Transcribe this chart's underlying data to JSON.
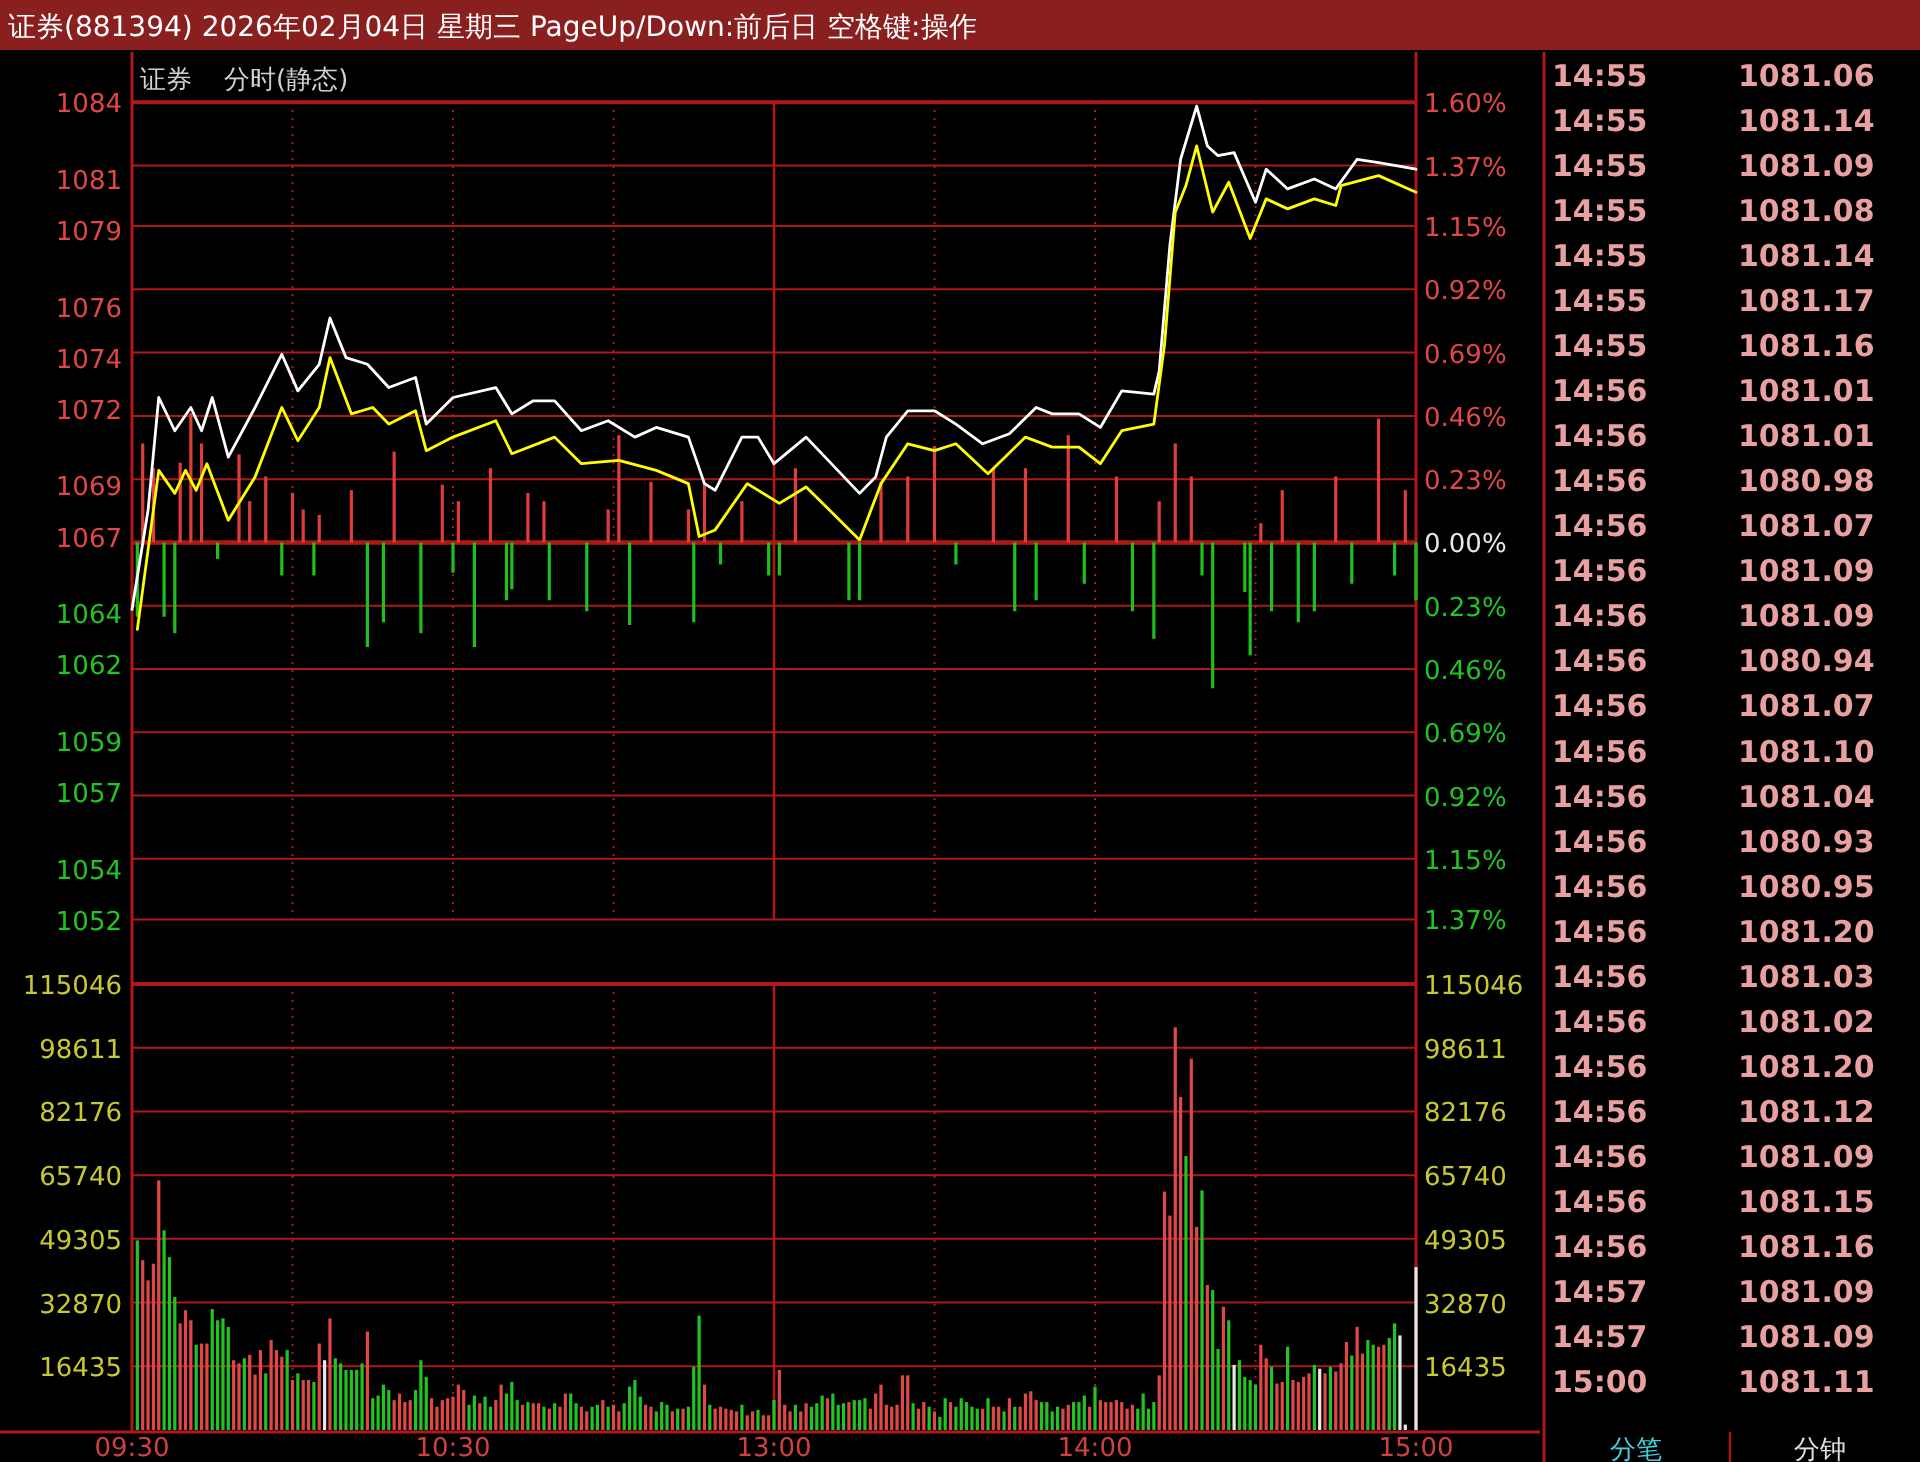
{
  "chart_data": [
    {
      "type": "line",
      "title": "证券(881394) 2026年02月04日 星期三 PageUp/Down:前后日 空格键:操作",
      "subtitle": "证券",
      "annotations": [
        "分时(静态)"
      ],
      "categories": [
        null,
        null,
        null,
        null,
        null,
        null,
        null,
        null,
        null,
        null,
        null,
        null,
        null,
        null,
        null,
        null,
        null,
        null,
        null,
        null,
        null,
        null,
        null,
        null,
        null,
        null,
        null,
        null,
        null,
        null,
        null,
        null,
        null,
        null,
        null,
        null,
        null,
        null,
        null,
        null,
        null,
        null,
        null,
        null,
        null,
        null,
        null,
        null,
        null,
        null,
        null,
        null,
        null,
        null,
        null,
        null,
        null,
        null,
        null,
        null,
        null,
        null,
        null,
        null,
        null,
        null,
        null,
        null,
        null,
        null,
        null,
        null,
        null,
        null,
        null,
        null,
        null,
        null,
        null,
        null,
        null,
        null,
        null,
        null,
        null,
        null,
        null,
        null,
        null,
        null,
        null,
        null,
        null,
        null,
        null,
        null,
        null,
        null,
        null,
        null,
        null,
        null,
        null,
        null,
        null,
        null,
        null,
        null,
        null,
        null,
        null,
        null,
        null,
        null,
        null,
        null,
        null,
        null,
        null,
        null,
        null,
        null,
        null,
        null,
        null,
        null,
        null,
        null,
        null,
        null,
        null,
        null,
        null,
        null,
        null,
        null,
        null,
        null,
        null,
        null,
        null,
        null,
        null,
        null,
        null,
        null,
        null,
        null,
        null,
        null,
        null,
        null,
        null,
        null,
        null,
        null,
        null,
        null,
        null,
        null,
        null,
        null,
        null,
        null,
        null,
        null,
        null,
        null,
        null,
        null,
        null,
        null,
        null,
        null,
        null,
        null,
        null,
        null,
        null,
        null,
        null,
        null,
        null,
        null,
        null,
        null,
        null,
        null,
        null,
        null,
        null,
        null,
        null,
        null,
        null,
        null,
        null,
        null,
        null,
        null,
        null,
        null,
        null,
        null,
        null,
        null,
        null,
        null,
        null,
        null,
        null,
        null,
        null,
        null,
        null,
        null,
        null,
        null,
        null,
        null,
        null,
        null,
        null,
        null,
        null,
        null,
        null,
        null,
        null,
        null,
        null,
        null,
        null,
        null,
        null,
        null,
        null,
        null,
        null,
        null,
        null
      ],
      "ylim": [
        1052,
        1084
      ],
      "yticks": [
        1052,
        1054,
        1057,
        1059,
        1062,
        1064,
        1067,
        1069,
        1072,
        1074,
        1076,
        1079,
        1081,
        1084
      ],
      "y2lim": [
        -1.3722,
        1.6009
      ],
      "y2ticks": [
        {
          "value": -1.37,
          "label": "1.37%"
        },
        {
          "value": -1.15,
          "label": "1.15%"
        },
        {
          "value": -0.92,
          "label": "0.92%"
        },
        {
          "value": -0.69,
          "label": "0.69%"
        },
        {
          "value": -0.46,
          "label": "0.46%"
        },
        {
          "value": -0.23,
          "label": "0.23%"
        },
        {
          "value": 0,
          "label": "0.00%"
        },
        {
          "value": 0.23,
          "label": "0.23%"
        },
        {
          "value": 0.46,
          "label": "0.46%"
        },
        {
          "value": 0.69,
          "label": "0.69%"
        },
        {
          "value": 0.92,
          "label": "0.92%"
        },
        {
          "value": 1.15,
          "label": "1.15%"
        },
        {
          "value": 1.37,
          "label": "1.37%"
        },
        {
          "value": 1.6,
          "label": "1.60%"
        }
      ],
      "grid": "y",
      "tick_labels": "y",
      "ref_lines": [
        {
          "axis": "y2",
          "value": 0
        }
      ],
      "series": [
        {
          "color": "#ffffff",
          "values": [
            1064.15,
            null,
            null,
            1068.03,
            null,
            1072.44,
            null,
            null,
            1071.14,
            null,
            null,
            1072.05,
            null,
            1071.14,
            null,
            1072.44,
            null,
            null,
            1070.11,
            null,
            null,
            null,
            null,
            1072.05,
            null,
            null,
            null,
            null,
            1074.13,
            null,
            null,
            1072.7,
            null,
            null,
            null,
            1073.74,
            null,
            1075.55,
            null,
            null,
            1074.0,
            null,
            null,
            null,
            1073.74,
            null,
            null,
            null,
            1072.83,
            null,
            null,
            null,
            null,
            1073.22,
            null,
            1071.4,
            null,
            null,
            null,
            null,
            1072.44,
            null,
            null,
            null,
            null,
            null,
            null,
            null,
            1072.83,
            null,
            null,
            1071.8,
            null,
            null,
            null,
            1072.31,
            null,
            null,
            null,
            1072.31,
            null,
            null,
            null,
            null,
            1071.14,
            null,
            null,
            null,
            null,
            1071.53,
            null,
            null,
            null,
            null,
            1070.89,
            null,
            null,
            null,
            1071.27,
            null,
            null,
            null,
            null,
            null,
            1070.89,
            null,
            null,
            1069.07,
            null,
            1068.81,
            null,
            null,
            null,
            null,
            1070.89,
            null,
            null,
            1070.89,
            null,
            null,
            1069.85,
            null,
            null,
            null,
            null,
            null,
            1070.89,
            null,
            null,
            null,
            null,
            null,
            null,
            null,
            null,
            null,
            1068.69,
            null,
            null,
            1069.33,
            null,
            1070.89,
            null,
            null,
            null,
            1071.92,
            null,
            null,
            null,
            null,
            1071.92,
            null,
            null,
            null,
            1071.4,
            null,
            null,
            null,
            null,
            1070.63,
            null,
            null,
            null,
            null,
            1071.02,
            null,
            null,
            null,
            null,
            1072.05,
            null,
            null,
            1071.8,
            null,
            null,
            null,
            null,
            1071.8,
            null,
            null,
            null,
            1071.27,
            null,
            null,
            null,
            1072.7,
            null,
            null,
            null,
            null,
            null,
            1072.57,
            1073.47,
            null,
            1078.4,
            null,
            1081.76,
            null,
            null,
            1083.84,
            null,
            1082.28,
            null,
            1081.9,
            null,
            null,
            1082.02,
            null,
            null,
            null,
            1080.08,
            null,
            1081.37,
            null,
            null,
            null,
            1080.6,
            null,
            null,
            null,
            null,
            1080.99,
            null,
            null,
            null,
            1080.6,
            null,
            null,
            null,
            1081.76,
            null,
            null,
            null,
            1081.63,
            null,
            null,
            null,
            null,
            null,
            null,
            1081.37
          ]
        },
        {
          "color": "#ffff00",
          "values": [
            null,
            1063.37,
            null,
            null,
            null,
            1069.59,
            null,
            null,
            1068.69,
            null,
            1069.59,
            null,
            1068.81,
            null,
            1069.85,
            null,
            null,
            null,
            1067.64,
            null,
            null,
            null,
            null,
            1069.33,
            null,
            null,
            null,
            null,
            1072.05,
            null,
            null,
            1070.75,
            null,
            null,
            null,
            1072.05,
            null,
            1074.0,
            null,
            null,
            null,
            1071.8,
            null,
            null,
            null,
            1072.05,
            null,
            null,
            1071.4,
            null,
            null,
            null,
            null,
            1071.92,
            null,
            1070.36,
            null,
            null,
            null,
            null,
            1070.89,
            null,
            null,
            null,
            null,
            null,
            null,
            null,
            1071.53,
            null,
            null,
            1070.24,
            null,
            null,
            null,
            null,
            null,
            null,
            null,
            1070.89,
            null,
            null,
            null,
            null,
            1069.85,
            null,
            null,
            null,
            null,
            null,
            null,
            1069.98,
            null,
            null,
            null,
            null,
            null,
            null,
            1069.59,
            null,
            null,
            null,
            null,
            null,
            1069.07,
            null,
            1067.0,
            null,
            null,
            1067.26,
            null,
            null,
            null,
            null,
            null,
            1069.07,
            null,
            null,
            null,
            null,
            null,
            1068.3,
            null,
            null,
            null,
            null,
            1068.94,
            null,
            null,
            null,
            null,
            null,
            null,
            null,
            null,
            null,
            1066.87,
            null,
            null,
            null,
            1069.07,
            null,
            null,
            null,
            null,
            1070.63,
            null,
            null,
            null,
            null,
            1070.36,
            null,
            null,
            null,
            1070.63,
            null,
            null,
            null,
            null,
            null,
            1069.46,
            null,
            null,
            null,
            null,
            null,
            null,
            1070.89,
            null,
            null,
            null,
            null,
            1070.5,
            null,
            null,
            null,
            null,
            1070.5,
            null,
            null,
            null,
            1069.85,
            null,
            null,
            null,
            1071.14,
            null,
            null,
            null,
            null,
            null,
            1071.4,
            null,
            1074.51,
            null,
            1079.69,
            null,
            1080.73,
            null,
            1082.28,
            null,
            null,
            1079.69,
            null,
            null,
            1080.86,
            null,
            null,
            null,
            1078.66,
            null,
            null,
            1080.21,
            null,
            null,
            null,
            1079.82,
            null,
            null,
            null,
            null,
            1080.21,
            null,
            null,
            null,
            1079.95,
            1080.73,
            null,
            null,
            null,
            null,
            null,
            null,
            1081.12,
            null,
            null,
            null,
            null,
            null,
            null,
            1080.47
          ]
        },
        {
          "type": "bar",
          "axis": "y2",
          "color": "#e03c3c",
          "values": [
            null,
            null,
            0.36,
            null,
            0.27,
            null,
            null,
            null,
            null,
            0.29,
            null,
            0.47,
            null,
            0.36,
            null,
            null,
            null,
            null,
            null,
            null,
            0.32,
            null,
            0.15,
            null,
            null,
            0.24,
            null,
            null,
            null,
            null,
            0.18,
            null,
            0.12,
            null,
            null,
            0.1,
            null,
            null,
            null,
            null,
            null,
            0.19,
            null,
            null,
            null,
            null,
            null,
            null,
            null,
            0.33,
            null,
            null,
            null,
            null,
            null,
            null,
            null,
            null,
            0.21,
            null,
            null,
            0.15,
            null,
            null,
            null,
            null,
            null,
            0.27,
            null,
            null,
            null,
            null,
            null,
            null,
            0.18,
            null,
            null,
            0.15,
            null,
            null,
            null,
            null,
            null,
            null,
            null,
            null,
            null,
            null,
            null,
            0.12,
            null,
            0.39,
            null,
            null,
            null,
            null,
            null,
            0.22,
            null,
            null,
            null,
            null,
            null,
            null,
            0.12,
            null,
            null,
            0.22,
            null,
            null,
            null,
            null,
            null,
            null,
            0.15,
            null,
            null,
            null,
            null,
            null,
            null,
            null,
            null,
            null,
            0.27,
            null,
            null,
            null,
            null,
            null,
            null,
            null,
            null,
            null,
            null,
            null,
            null,
            null,
            null,
            null,
            0.22,
            null,
            null,
            null,
            null,
            0.24,
            null,
            null,
            null,
            null,
            0.35,
            null,
            null,
            null,
            null,
            null,
            null,
            null,
            null,
            null,
            null,
            0.27,
            null,
            null,
            null,
            null,
            null,
            0.27,
            null,
            null,
            null,
            null,
            null,
            null,
            null,
            0.39,
            null,
            null,
            null,
            null,
            null,
            null,
            null,
            null,
            0.24,
            null,
            null,
            null,
            null,
            null,
            null,
            null,
            0.15,
            null,
            null,
            0.36,
            null,
            null,
            0.24,
            null,
            null,
            null,
            null,
            null,
            null,
            null,
            null,
            null,
            null,
            null,
            null,
            0.07,
            null,
            null,
            null,
            0.19,
            null,
            null,
            null,
            null,
            null,
            null,
            null,
            null,
            null,
            0.24,
            null,
            null,
            null,
            null,
            null,
            null,
            null,
            0.45,
            null,
            null,
            null,
            null,
            0.19,
            null,
            null
          ]
        },
        {
          "type": "bar",
          "axis": "y2",
          "color": "#1fbf1f",
          "values": [
            null,
            -0.27,
            null,
            null,
            null,
            null,
            -0.27,
            null,
            -0.33,
            null,
            null,
            null,
            null,
            null,
            null,
            null,
            -0.06,
            null,
            null,
            null,
            null,
            null,
            null,
            null,
            null,
            null,
            null,
            null,
            -0.12,
            null,
            null,
            null,
            null,
            null,
            -0.12,
            null,
            null,
            null,
            null,
            null,
            null,
            null,
            null,
            null,
            -0.38,
            null,
            null,
            -0.29,
            null,
            null,
            null,
            null,
            null,
            null,
            -0.33,
            null,
            null,
            null,
            null,
            null,
            -0.11,
            null,
            null,
            null,
            -0.38,
            null,
            null,
            null,
            null,
            null,
            -0.21,
            -0.17,
            null,
            null,
            null,
            null,
            null,
            null,
            -0.21,
            null,
            null,
            null,
            null,
            null,
            null,
            -0.25,
            null,
            null,
            null,
            null,
            null,
            null,
            null,
            -0.3,
            null,
            null,
            null,
            null,
            null,
            null,
            null,
            null,
            null,
            null,
            null,
            -0.29,
            null,
            null,
            null,
            null,
            -0.08,
            null,
            null,
            null,
            null,
            null,
            null,
            null,
            null,
            -0.12,
            null,
            -0.12,
            null,
            null,
            null,
            null,
            null,
            null,
            null,
            null,
            null,
            null,
            null,
            null,
            -0.21,
            null,
            -0.21,
            null,
            null,
            null,
            null,
            null,
            null,
            null,
            null,
            null,
            null,
            null,
            null,
            null,
            null,
            null,
            null,
            null,
            -0.08,
            null,
            null,
            null,
            null,
            null,
            null,
            null,
            null,
            null,
            null,
            -0.25,
            null,
            null,
            null,
            -0.21,
            null,
            null,
            null,
            null,
            null,
            null,
            null,
            null,
            -0.15,
            null,
            null,
            null,
            null,
            null,
            null,
            null,
            null,
            -0.25,
            null,
            null,
            null,
            -0.35,
            null,
            null,
            null,
            null,
            null,
            null,
            null,
            null,
            -0.12,
            null,
            -0.53,
            null,
            null,
            null,
            null,
            null,
            -0.18,
            -0.41,
            null,
            null,
            null,
            -0.25,
            null,
            null,
            null,
            null,
            -0.29,
            null,
            null,
            -0.25,
            null,
            null,
            null,
            null,
            null,
            null,
            -0.15,
            null,
            null,
            null,
            null,
            null,
            null,
            null,
            -0.12,
            null,
            null,
            null,
            -0.21
          ]
        }
      ]
    },
    {
      "type": "bar",
      "categories": [
        "09:30",
        null,
        null,
        null,
        null,
        null,
        null,
        null,
        null,
        null,
        null,
        null,
        null,
        null,
        null,
        null,
        null,
        null,
        null,
        null,
        null,
        null,
        null,
        null,
        null,
        null,
        null,
        null,
        null,
        null,
        null,
        null,
        null,
        null,
        null,
        null,
        null,
        null,
        null,
        null,
        null,
        null,
        null,
        null,
        null,
        null,
        null,
        null,
        null,
        null,
        null,
        null,
        null,
        null,
        null,
        null,
        null,
        null,
        null,
        null,
        "10:30",
        null,
        null,
        null,
        null,
        null,
        null,
        null,
        null,
        null,
        null,
        null,
        null,
        null,
        null,
        null,
        null,
        null,
        null,
        null,
        null,
        null,
        null,
        null,
        null,
        null,
        null,
        null,
        null,
        null,
        null,
        null,
        null,
        null,
        null,
        null,
        null,
        null,
        null,
        null,
        null,
        null,
        null,
        null,
        null,
        null,
        null,
        null,
        null,
        null,
        null,
        null,
        null,
        null,
        null,
        null,
        null,
        null,
        null,
        null,
        "13:00",
        null,
        null,
        null,
        null,
        null,
        null,
        null,
        null,
        null,
        null,
        null,
        null,
        null,
        null,
        null,
        null,
        null,
        null,
        null,
        null,
        null,
        null,
        null,
        null,
        null,
        null,
        null,
        null,
        null,
        null,
        null,
        null,
        null,
        null,
        null,
        null,
        null,
        null,
        null,
        null,
        null,
        null,
        null,
        null,
        null,
        null,
        null,
        null,
        null,
        null,
        null,
        null,
        null,
        null,
        null,
        null,
        null,
        null,
        null,
        "14:00",
        null,
        null,
        null,
        null,
        null,
        null,
        null,
        null,
        null,
        null,
        null,
        null,
        null,
        null,
        null,
        null,
        null,
        null,
        null,
        null,
        null,
        null,
        null,
        null,
        null,
        null,
        null,
        null,
        null,
        null,
        null,
        null,
        null,
        null,
        null,
        null,
        null,
        null,
        null,
        null,
        null,
        null,
        null,
        null,
        null,
        null,
        null,
        null,
        null,
        null,
        null,
        null,
        null,
        null,
        null,
        null,
        null,
        null,
        null,
        "15:00"
      ],
      "ylim": [
        0,
        115046
      ],
      "yticks": [
        16435,
        32870,
        49305,
        65740,
        82176,
        98611,
        115046
      ],
      "y2lim": [
        0,
        115046
      ],
      "y2ticks": [
        16435,
        32870,
        49305,
        65740,
        82176,
        98611,
        115046
      ],
      "grid": "y",
      "series": [
        {
          "values": [
            null,
            48900,
            43800,
            38600,
            42900,
            64400,
            51500,
            44600,
            34300,
            27500,
            30900,
            28300,
            22000,
            22300,
            22300,
            31200,
            28300,
            28800,
            26600,
            18000,
            17200,
            18500,
            19400,
            14300,
            20600,
            14600,
            23200,
            20600,
            18900,
            20600,
            12900,
            14600,
            12900,
            12900,
            12400,
            22300,
            18000,
            28800,
            18500,
            17200,
            15500,
            15500,
            15500,
            17200,
            25400,
            8200,
            8900,
            11700,
            10300,
            7700,
            9400,
            7200,
            7700,
            10300,
            18000,
            13700,
            8200,
            6000,
            7700,
            8200,
            8600,
            11700,
            10300,
            6500,
            8900,
            6900,
            8600,
            6000,
            7700,
            11700,
            9400,
            12400,
            7700,
            6500,
            7200,
            6900,
            6900,
            6000,
            5500,
            6900,
            6000,
            9400,
            9400,
            6900,
            6000,
            4800,
            6000,
            6500,
            7700,
            6000,
            6500,
            4800,
            6900,
            11200,
            12900,
            8600,
            6500,
            6000,
            4800,
            7200,
            6500,
            4800,
            5500,
            5500,
            6000,
            16300,
            29500,
            11700,
            6500,
            5500,
            6000,
            5500,
            5200,
            4800,
            6500,
            3800,
            4800,
            5200,
            3800,
            3800,
            7700,
            15500,
            6500,
            4800,
            6500,
            4800,
            6900,
            6000,
            6900,
            8900,
            8200,
            9400,
            6500,
            6900,
            7200,
            7700,
            7700,
            8200,
            5500,
            9400,
            11700,
            6500,
            6000,
            6500,
            14100,
            14100,
            6900,
            5500,
            7200,
            6000,
            4800,
            3400,
            8200,
            7200,
            6000,
            8200,
            7200,
            6000,
            5500,
            5500,
            8200,
            6000,
            6000,
            4800,
            8200,
            6000,
            6000,
            9400,
            10000,
            7700,
            7200,
            7200,
            4800,
            6000,
            5500,
            6500,
            7200,
            7200,
            8900,
            6000,
            11200,
            7700,
            7200,
            7200,
            7700,
            7200,
            5500,
            6500,
            5500,
            9400,
            5500,
            7200,
            14100,
            61500,
            55300,
            103900,
            85900,
            70700,
            95800,
            52400,
            61800,
            37400,
            36100,
            20900,
            31800,
            28300,
            16800,
            18000,
            13700,
            12900,
            11700,
            22000,
            18500,
            16300,
            12000,
            12400,
            21500,
            12900,
            12400,
            13700,
            14600,
            16800,
            15800,
            14600,
            16300,
            15100,
            17200,
            22700,
            19200,
            26600,
            19700,
            23200,
            22000,
            21500,
            22000,
            23700,
            27500,
            24400,
            1400,
            null,
            42000
          ],
          "colors": [
            null,
            "#22c422",
            "#e04848",
            "#e04848",
            "#e04848",
            "#e04848",
            "#22c422",
            "#22c422",
            "#22c422",
            "#e04848",
            "#e04848",
            "#e04848",
            "#22c422",
            "#e04848",
            "#e04848",
            "#22c422",
            "#22c422",
            "#22c422",
            "#22c422",
            "#e04848",
            "#e04848",
            "#22c422",
            "#e04848",
            "#e04848",
            "#e04848",
            "#22c422",
            "#e04848",
            "#e04848",
            "#e04848",
            "#22c422",
            "#e04848",
            "#22c422",
            "#e04848",
            "#e04848",
            "#22c422",
            "#e04848",
            "#e8e8e8",
            "#e04848",
            "#22c422",
            "#22c422",
            "#22c422",
            "#22c422",
            "#22c422",
            "#22c422",
            "#e04848",
            "#22c422",
            "#22c422",
            "#22c422",
            "#22c422",
            "#e04848",
            "#e04848",
            "#e04848",
            "#e04848",
            "#22c422",
            "#22c422",
            "#22c422",
            "#e04848",
            "#e04848",
            "#e04848",
            "#e04848",
            "#e04848",
            "#e04848",
            "#e04848",
            "#22c422",
            "#22c422",
            "#e04848",
            "#22c422",
            "#22c422",
            "#e04848",
            "#e04848",
            "#22c422",
            "#22c422",
            "#22c422",
            "#e04848",
            "#22c422",
            "#e04848",
            "#e04848",
            "#22c422",
            "#e04848",
            "#22c422",
            "#e04848",
            "#e04848",
            "#22c422",
            "#22c422",
            "#e04848",
            "#e04848",
            "#22c422",
            "#22c422",
            "#e04848",
            "#22c422",
            "#e04848",
            "#e04848",
            "#22c422",
            "#22c422",
            "#22c422",
            "#22c422",
            "#e04848",
            "#e04848",
            "#22c422",
            "#22c422",
            "#22c422",
            "#e04848",
            "#22c422",
            "#e04848",
            "#22c422",
            "#22c422",
            "#22c422",
            "#e04848",
            "#22c422",
            "#e04848",
            "#e04848",
            "#e04848",
            "#e04848",
            "#e04848",
            "#22c422",
            "#e04848",
            "#e04848",
            "#22c422",
            "#e04848",
            "#e04848",
            "#22c422",
            "#e04848",
            "#e04848",
            "#e04848",
            "#22c422",
            "#e04848",
            "#e04848",
            "#22c422",
            "#22c422",
            "#22c422",
            "#e04848",
            "#22c422",
            "#22c422",
            "#22c422",
            "#e04848",
            "#22c422",
            "#22c422",
            "#22c422",
            "#e04848",
            "#e04848",
            "#e04848",
            "#e04848",
            "#e04848",
            "#e04848",
            "#e04848",
            "#e04848",
            "#22c422",
            "#e04848",
            "#e04848",
            "#22c422",
            "#e04848",
            "#22c422",
            "#22c422",
            "#e04848",
            "#22c422",
            "#22c422",
            "#22c422",
            "#22c422",
            "#22c422",
            "#e04848",
            "#22c422",
            "#e04848",
            "#e04848",
            "#22c422",
            "#e04848",
            "#22c422",
            "#e04848",
            "#e04848",
            "#e04848",
            "#e04848",
            "#22c422",
            "#22c422",
            "#22c422",
            "#22c422",
            "#e04848",
            "#e04848",
            "#22c422",
            "#22c422",
            "#22c422",
            "#e04848",
            "#22c422",
            "#e04848",
            "#e04848",
            "#e04848",
            "#e04848",
            "#e04848",
            "#e04848",
            "#e04848",
            "#22c422",
            "#22c422",
            "#22c422",
            "#22c422",
            "#e04848",
            "#e04848",
            "#e04848",
            "#e04848",
            "#e04848",
            "#22c422",
            "#e04848",
            "#e04848",
            "#22c422",
            "#e04848",
            "#22c422",
            "#22c422",
            "#e04848",
            "#22c422",
            "#e8e8e8",
            "#22c422",
            "#22c422",
            "#22c422",
            "#22c422",
            "#e04848",
            "#e04848",
            "#22c422",
            "#e04848",
            "#e04848",
            "#22c422",
            "#e04848",
            "#e04848",
            "#e04848",
            "#e04848",
            "#22c422",
            "#e8e8e8",
            "#e04848",
            "#22c422",
            "#e04848",
            "#e04848",
            "#e04848",
            "#22c422",
            "#e04848",
            "#e04848",
            "#22c422",
            "#22c422",
            "#e04848",
            "#e04848",
            "#22c422",
            "#22c422",
            "#e8e8e8",
            "#e8e8e8",
            null,
            "#e8e8e8"
          ]
        }
      ]
    },
    {
      "type": "other",
      "annotations": [
        "14:55 1081.06",
        "14:55 1081.14",
        "14:55 1081.09",
        "14:55 1081.08",
        "14:55 1081.14",
        "14:55 1081.17",
        "14:55 1081.16",
        "14:56 1081.01",
        "14:56 1081.01",
        "14:56 1080.98",
        "14:56 1081.07",
        "14:56 1081.09",
        "14:56 1081.09",
        "14:56 1080.94",
        "14:56 1081.07",
        "14:56 1081.10",
        "14:56 1081.04",
        "14:56 1080.93",
        "14:56 1080.95",
        "14:56 1081.20",
        "14:56 1081.03",
        "14:56 1081.02",
        "14:56 1081.20",
        "14:56 1081.12",
        "14:56 1081.09",
        "14:56 1081.15",
        "14:56 1081.16",
        "14:57 1081.09",
        "14:57 1081.09",
        "15:00 1081.11",
        "分笔",
        "分钟"
      ]
    }
  ]
}
